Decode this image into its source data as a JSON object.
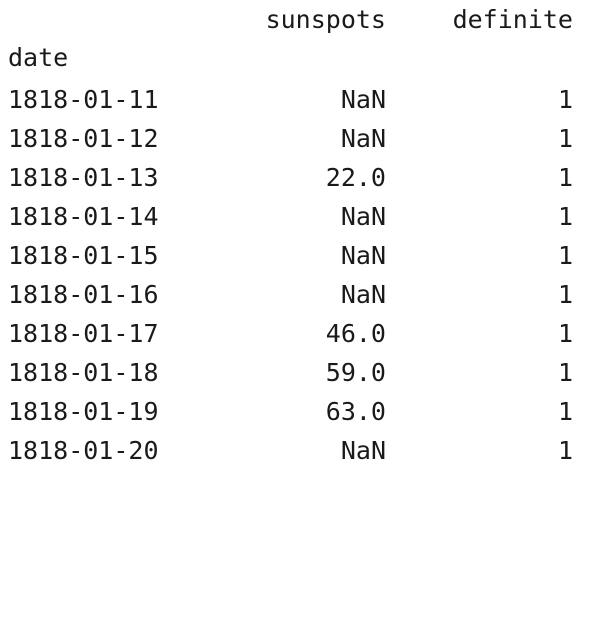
{
  "table": {
    "columns": [
      "sunspots",
      "definite"
    ],
    "index_name": "date",
    "rows": [
      {
        "date": "1818-01-11",
        "sunspots": "NaN",
        "definite": "1"
      },
      {
        "date": "1818-01-12",
        "sunspots": "NaN",
        "definite": "1"
      },
      {
        "date": "1818-01-13",
        "sunspots": "22.0",
        "definite": "1"
      },
      {
        "date": "1818-01-14",
        "sunspots": "NaN",
        "definite": "1"
      },
      {
        "date": "1818-01-15",
        "sunspots": "NaN",
        "definite": "1"
      },
      {
        "date": "1818-01-16",
        "sunspots": "NaN",
        "definite": "1"
      },
      {
        "date": "1818-01-17",
        "sunspots": "46.0",
        "definite": "1"
      },
      {
        "date": "1818-01-18",
        "sunspots": "59.0",
        "definite": "1"
      },
      {
        "date": "1818-01-19",
        "sunspots": "63.0",
        "definite": "1"
      },
      {
        "date": "1818-01-20",
        "sunspots": "NaN",
        "definite": "1"
      }
    ]
  }
}
